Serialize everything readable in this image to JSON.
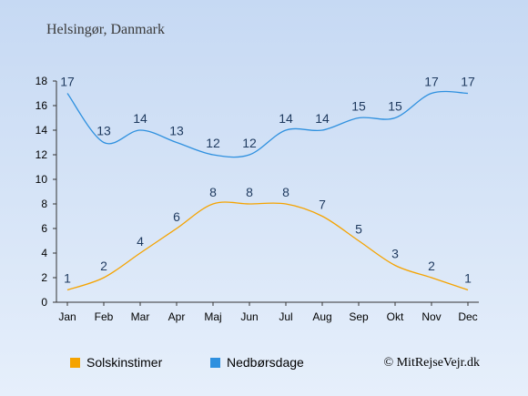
{
  "chart_data": {
    "type": "line",
    "title": "Helsingør, Danmark",
    "categories": [
      "Jan",
      "Feb",
      "Mar",
      "Apr",
      "Maj",
      "Jun",
      "Jul",
      "Aug",
      "Sep",
      "Okt",
      "Nov",
      "Dec"
    ],
    "series": [
      {
        "name": "Solskinstimer",
        "color": "#f5a300",
        "values": [
          1,
          2,
          4,
          6,
          8,
          8,
          8,
          7,
          5,
          3,
          2,
          1
        ]
      },
      {
        "name": "Nedbørsdage",
        "color": "#2e90df",
        "values": [
          17,
          13,
          14,
          13,
          12,
          12,
          14,
          14,
          15,
          15,
          17,
          17
        ]
      }
    ],
    "ylim": [
      0,
      18
    ],
    "yticks": [
      "0",
      "2",
      "4",
      "6",
      "8",
      "10",
      "12",
      "14",
      "16",
      "18"
    ],
    "grid": false,
    "legend_position": "bottom-left"
  },
  "copyright": "© MitRejseVejr.dk"
}
